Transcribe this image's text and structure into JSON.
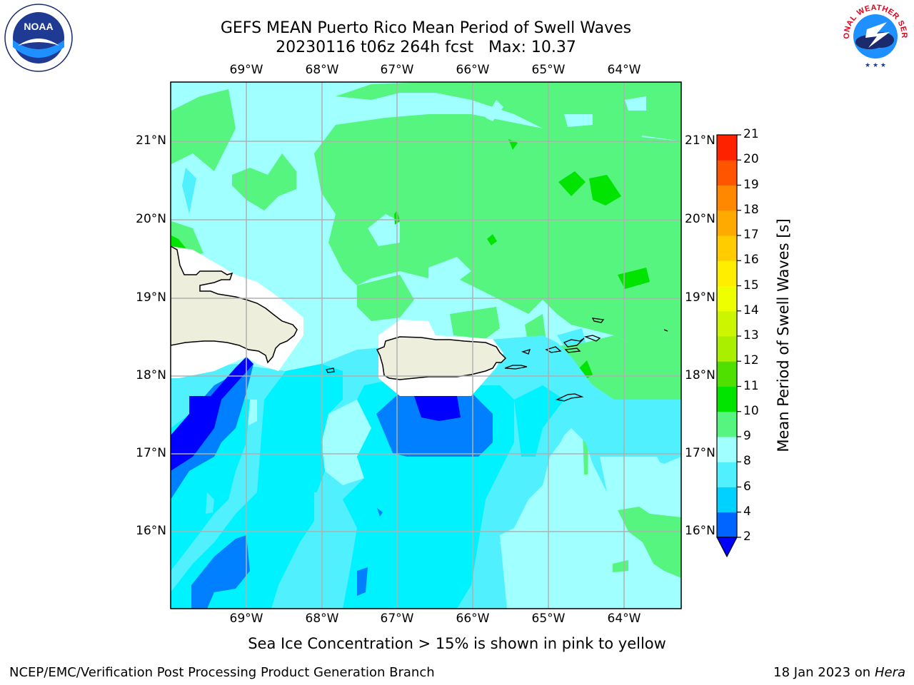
{
  "header": {
    "title_line1": "GEFS MEAN Puerto Rico Mean Period of Swell Waves",
    "title_line2": "20230116 t06z 264h fcst   Max: 10.37"
  },
  "logos": {
    "left": {
      "name": "noaa-logo",
      "text": "NOAA"
    },
    "right": {
      "name": "national-weather-service-logo",
      "text": "NATIONAL WEATHER SERVICE"
    }
  },
  "map": {
    "lon_ticks": [
      "69°W",
      "68°W",
      "67°W",
      "66°W",
      "65°W",
      "64°W"
    ],
    "lat_ticks": [
      "21°N",
      "20°N",
      "19°N",
      "18°N",
      "17°N",
      "16°N"
    ],
    "lon_range": [
      -70.0,
      -63.25
    ],
    "lat_range": [
      15.0,
      21.75
    ],
    "land_color": "#eeeedd",
    "gridline_color": "#b0b0b0"
  },
  "colorbar": {
    "title": "Mean Period of Swell Waves [s]",
    "levels": [
      "2",
      "4",
      "6",
      "8",
      "9",
      "10",
      "11",
      "12",
      "13",
      "14",
      "15",
      "16",
      "17",
      "18",
      "19",
      "20",
      "21"
    ],
    "colors": [
      "#0064ff",
      "#00d2ff",
      "#50f0ff",
      "#a0ffff",
      "#55f57f",
      "#00e400",
      "#4fe000",
      "#aaee00",
      "#ccf500",
      "#eeff00",
      "#ffee00",
      "#ffcc00",
      "#ffaa00",
      "#ff8800",
      "#ff5500",
      "#ff2200"
    ],
    "under_color": "#0000ff",
    "over_color": "#ff0000"
  },
  "notes": {
    "sea_ice": "Sea Ice Concentration > 15% is shown in pink to yellow"
  },
  "footer": {
    "left": "NCEP/EMC/Verification Post Processing Product Generation Branch",
    "right_date": "18 Jan 2023 on ",
    "right_host": "Hera"
  }
}
